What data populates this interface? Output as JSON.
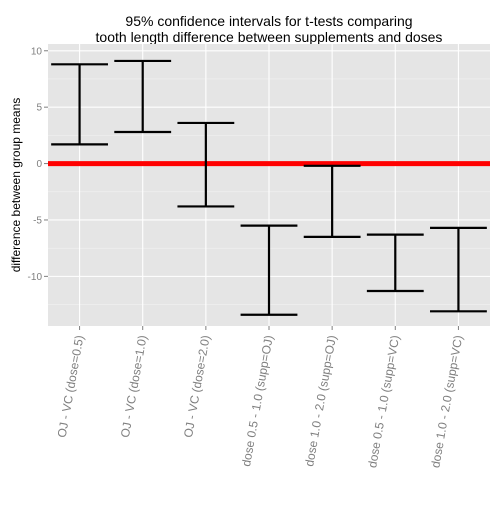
{
  "chart_data": {
    "type": "errorbar",
    "title_lines": [
      "95% confidence intervals for t-tests comparing",
      "tooth length difference between supplements and doses"
    ],
    "xlabel": "",
    "ylabel": "difference between group means",
    "ylim": [
      -14.4,
      10.6
    ],
    "yticks": [
      10,
      5,
      0,
      -5,
      -10
    ],
    "ytick_labels": [
      "10",
      "5",
      "0",
      "-5",
      "-10"
    ],
    "grid": true,
    "reference_line": {
      "y": 0,
      "color": "#ff0000"
    },
    "categories": [
      "OJ - VC   (dose=0.5)",
      "OJ - VC   (dose=1.0)",
      "OJ - VC   (dose=2.0)",
      "dose 0.5 - 1.0   (supp=OJ)",
      "dose 1.0 - 2.0   (supp=OJ)",
      "dose 0.5 - 1.0   (supp=VC)",
      "dose 1.0 - 2.0   (supp=VC)"
    ],
    "intervals": [
      {
        "lower": 1.7,
        "upper": 8.8
      },
      {
        "lower": 2.8,
        "upper": 9.1
      },
      {
        "lower": -3.8,
        "upper": 3.6
      },
      {
        "lower": -13.4,
        "upper": -5.5
      },
      {
        "lower": -6.5,
        "upper": -0.2
      },
      {
        "lower": -11.3,
        "upper": -6.3
      },
      {
        "lower": -13.1,
        "upper": -5.7
      }
    ],
    "colors": {
      "panel": "#e5e5e5",
      "grid_major": "#ffffff",
      "grid_minor": "#f2f2f2",
      "errorbar": "#000000",
      "tick_text": "#7f7f7f",
      "title_text": "#000000"
    }
  }
}
